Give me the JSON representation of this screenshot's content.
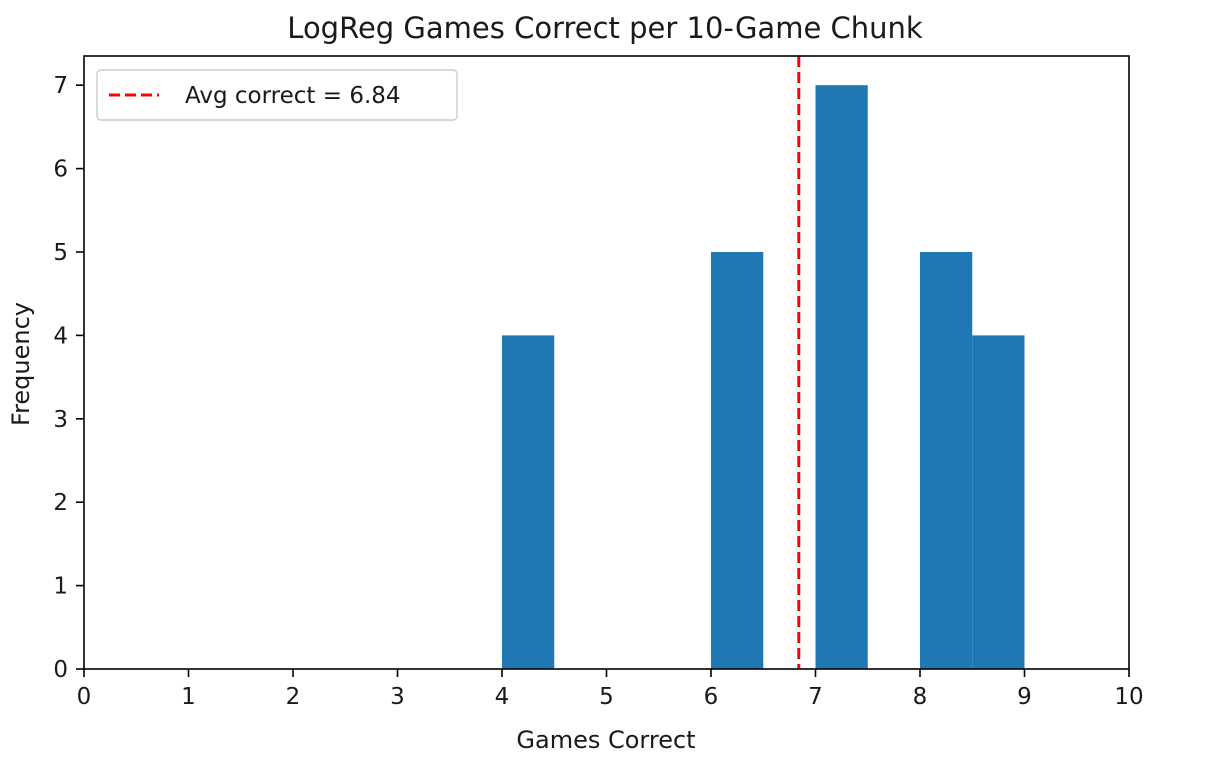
{
  "chart_data": {
    "type": "bar",
    "title": "LogReg Games Correct per 10-Game Chunk",
    "xlabel": "Games Correct",
    "ylabel": "Frequency",
    "xlim": [
      0,
      10
    ],
    "ylim": [
      0,
      7.35
    ],
    "xticks": [
      "0",
      "1",
      "2",
      "3",
      "4",
      "5",
      "6",
      "7",
      "8",
      "9",
      "10"
    ],
    "yticks": [
      "0",
      "1",
      "2",
      "3",
      "4",
      "5",
      "6",
      "7"
    ],
    "bin_width": 0.5,
    "bars": [
      {
        "x_start": 4.0,
        "value": 4
      },
      {
        "x_start": 6.0,
        "value": 5
      },
      {
        "x_start": 7.0,
        "value": 7
      },
      {
        "x_start": 8.0,
        "value": 5
      },
      {
        "x_start": 8.5,
        "value": 4
      }
    ],
    "bar_color": "#1f77b4",
    "reference_line": {
      "x": 6.84,
      "color": "#ff0000",
      "style": "dashed",
      "label": "Avg correct = 6.84"
    },
    "grid": false,
    "legend_position": "top-left"
  }
}
